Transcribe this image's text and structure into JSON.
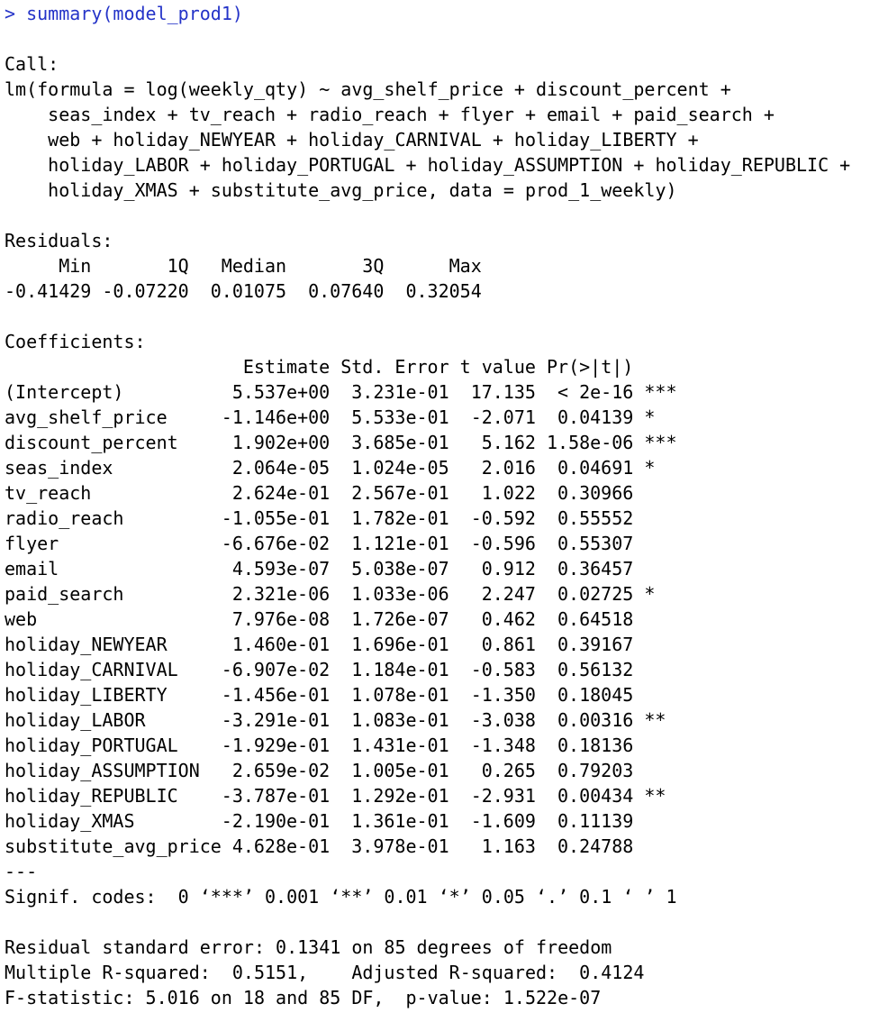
{
  "console": {
    "command": "> summary(model_prod1)",
    "call_label": "Call:",
    "call_lines": [
      "lm(formula = log(weekly_qty) ~ avg_shelf_price + discount_percent +",
      "seas_index + tv_reach + radio_reach + flyer + email + paid_search +",
      "web + holiday_NEWYEAR + holiday_CARNIVAL + holiday_LIBERTY +",
      "holiday_LABOR + holiday_PORTUGAL + holiday_ASSUMPTION + holiday_REPUBLIC +",
      "holiday_XMAS + substitute_avg_price, data = prod_1_weekly)"
    ],
    "residuals_label": "Residuals:",
    "residuals_headers": [
      "Min",
      "1Q",
      "Median",
      "3Q",
      "Max"
    ],
    "residuals_values": [
      "-0.41429",
      "-0.07220",
      "0.01075",
      "0.07640",
      "0.32054"
    ],
    "coefficients_label": "Coefficients:",
    "coefficients_headers": [
      "Estimate",
      "Std. Error",
      "t value",
      "Pr(>|t|)"
    ],
    "coefficients": [
      {
        "name": "(Intercept)",
        "estimate": "5.537e+00",
        "std_error": "3.231e-01",
        "t_value": "17.135",
        "p_value": "< 2e-16",
        "signif": "***"
      },
      {
        "name": "avg_shelf_price",
        "estimate": "-1.146e+00",
        "std_error": "5.533e-01",
        "t_value": "-2.071",
        "p_value": "0.04139",
        "signif": "*"
      },
      {
        "name": "discount_percent",
        "estimate": "1.902e+00",
        "std_error": "3.685e-01",
        "t_value": "5.162",
        "p_value": "1.58e-06",
        "signif": "***"
      },
      {
        "name": "seas_index",
        "estimate": "2.064e-05",
        "std_error": "1.024e-05",
        "t_value": "2.016",
        "p_value": "0.04691",
        "signif": "*"
      },
      {
        "name": "tv_reach",
        "estimate": "2.624e-01",
        "std_error": "2.567e-01",
        "t_value": "1.022",
        "p_value": "0.30966"
      },
      {
        "name": "radio_reach",
        "estimate": "-1.055e-01",
        "std_error": "1.782e-01",
        "t_value": "-0.592",
        "p_value": "0.55552"
      },
      {
        "name": "flyer",
        "estimate": "-6.676e-02",
        "std_error": "1.121e-01",
        "t_value": "-0.596",
        "p_value": "0.55307"
      },
      {
        "name": "email",
        "estimate": "4.593e-07",
        "std_error": "5.038e-07",
        "t_value": "0.912",
        "p_value": "0.36457"
      },
      {
        "name": "paid_search",
        "estimate": "2.321e-06",
        "std_error": "1.033e-06",
        "t_value": "2.247",
        "p_value": "0.02725",
        "signif": "*"
      },
      {
        "name": "web",
        "estimate": "7.976e-08",
        "std_error": "1.726e-07",
        "t_value": "0.462",
        "p_value": "0.64518"
      },
      {
        "name": "holiday_NEWYEAR",
        "estimate": "1.460e-01",
        "std_error": "1.696e-01",
        "t_value": "0.861",
        "p_value": "0.39167"
      },
      {
        "name": "holiday_CARNIVAL",
        "estimate": "-6.907e-02",
        "std_error": "1.184e-01",
        "t_value": "-0.583",
        "p_value": "0.56132"
      },
      {
        "name": "holiday_LIBERTY",
        "estimate": "-1.456e-01",
        "std_error": "1.078e-01",
        "t_value": "-1.350",
        "p_value": "0.18045"
      },
      {
        "name": "holiday_LABOR",
        "estimate": "-3.291e-01",
        "std_error": "1.083e-01",
        "t_value": "-3.038",
        "p_value": "0.00316",
        "signif": "**"
      },
      {
        "name": "holiday_PORTUGAL",
        "estimate": "-1.929e-01",
        "std_error": "1.431e-01",
        "t_value": "-1.348",
        "p_value": "0.18136"
      },
      {
        "name": "holiday_ASSUMPTION",
        "estimate": "2.659e-02",
        "std_error": "1.005e-01",
        "t_value": "0.265",
        "p_value": "0.79203"
      },
      {
        "name": "holiday_REPUBLIC",
        "estimate": "-3.787e-01",
        "std_error": "1.292e-01",
        "t_value": "-2.931",
        "p_value": "0.00434",
        "signif": "**"
      },
      {
        "name": "holiday_XMAS",
        "estimate": "-2.190e-01",
        "std_error": "1.361e-01",
        "t_value": "-1.609",
        "p_value": "0.11139"
      },
      {
        "name": "substitute_avg_price",
        "estimate": "4.628e-01",
        "std_error": "3.978e-01",
        "t_value": "1.163",
        "p_value": "0.24788"
      }
    ],
    "separator": "---",
    "signif_codes": "Signif. codes:  0 ‘***’ 0.001 ‘**’ 0.01 ‘*’ 0.05 ‘.’ 0.1 ‘ ’ 1",
    "footer_lines": [
      "Residual standard error: 0.1341 on 85 degrees of freedom",
      "Multiple R-squared:  0.5151,    Adjusted R-squared:  0.4124",
      "F-statistic: 5.016 on 18 and 85 DF,  p-value: 1.522e-07"
    ]
  }
}
